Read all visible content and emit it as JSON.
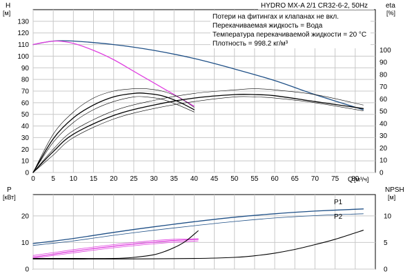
{
  "header": {
    "title": "HYDRO MX-A 2/1 CR32-6-2, 50Hz"
  },
  "notes": [
    "Потери на фитингах и клапанах не вкл.",
    "Перекачиваемая жидкость = Вода",
    "Температура перекачиваемой жидкости = 20 °C",
    "Плотность = 998.2 кг/м³"
  ],
  "colors": {
    "blue": "#1e4f86",
    "magenta": "#e040e0",
    "black": "#000000"
  },
  "chart_data": [
    {
      "type": "line",
      "name": "top",
      "ylabel_left": "H",
      "ylabel_left_unit": "[м]",
      "ylabel_right": "eta",
      "ylabel_right_unit": "[%]",
      "xlabel": "Q",
      "xlabel_unit": "[м³/ч]",
      "xlim": [
        0,
        85
      ],
      "ylim_left": [
        0,
        140
      ],
      "ylim_right": [
        0,
        100
      ],
      "x_ticks": [
        "0",
        "5",
        "10",
        "15",
        "20",
        "25",
        "30",
        "35",
        "40",
        "45",
        "50",
        "55",
        "60",
        "65",
        "70",
        "75",
        "80"
      ],
      "x_tick_values": [
        0,
        5,
        10,
        15,
        20,
        25,
        30,
        35,
        40,
        45,
        50,
        55,
        60,
        65,
        70,
        75,
        80
      ],
      "y_left_ticks": [
        0,
        10,
        20,
        30,
        40,
        50,
        60,
        70,
        80,
        90,
        100,
        110,
        120,
        130
      ],
      "y_right_ticks": [
        0,
        10,
        20,
        30,
        40,
        50,
        60,
        70,
        80,
        90,
        100
      ],
      "grid": true,
      "series": [
        {
          "axis": "left",
          "color": "#1e4f86",
          "width": 1.3,
          "x": [
            0,
            5,
            10,
            20,
            30,
            40,
            50,
            60,
            70,
            82
          ],
          "y": [
            110,
            113,
            113,
            110,
            105,
            98,
            89,
            79,
            67,
            54
          ]
        },
        {
          "axis": "left",
          "color": "#e040e0",
          "width": 1.3,
          "x": [
            0,
            3,
            6,
            10,
            15,
            20,
            25,
            30,
            35,
            40
          ],
          "y": [
            110,
            112,
            113,
            111,
            105,
            97,
            87,
            77,
            67,
            57
          ]
        },
        {
          "axis": "left",
          "color": "#000000",
          "width": 1.3,
          "x": [
            0,
            5,
            10,
            15,
            20,
            25,
            28,
            32,
            36,
            40
          ],
          "y": [
            0,
            29,
            47,
            58,
            65,
            68,
            68,
            66,
            61,
            54
          ]
        },
        {
          "axis": "left",
          "color": "#000000",
          "width": 0.6,
          "x": [
            0,
            5,
            10,
            15,
            20,
            25,
            28,
            32,
            36,
            40
          ],
          "y": [
            0,
            33,
            52,
            64,
            70,
            72,
            72,
            70,
            65,
            56
          ]
        },
        {
          "axis": "left",
          "color": "#000000",
          "width": 0.6,
          "x": [
            0,
            5,
            10,
            15,
            20,
            25,
            28,
            32,
            36,
            40
          ],
          "y": [
            0,
            26,
            43,
            54,
            61,
            65,
            65,
            63,
            58,
            52
          ]
        },
        {
          "axis": "left",
          "color": "#000000",
          "width": 1.3,
          "x": [
            0,
            5,
            10,
            20,
            30,
            40,
            50,
            55,
            60,
            70,
            82
          ],
          "y": [
            0,
            18,
            33,
            49,
            58,
            64,
            67,
            67,
            66,
            61,
            55
          ]
        },
        {
          "axis": "left",
          "color": "#000000",
          "width": 0.6,
          "x": [
            0,
            5,
            10,
            20,
            30,
            40,
            50,
            55,
            60,
            70,
            82
          ],
          "y": [
            0,
            20,
            36,
            53,
            62,
            68,
            71,
            72,
            71,
            67,
            58
          ]
        },
        {
          "axis": "left",
          "color": "#000000",
          "width": 0.6,
          "x": [
            0,
            5,
            10,
            20,
            30,
            40,
            50,
            55,
            60,
            70,
            82
          ],
          "y": [
            0,
            15,
            30,
            46,
            55,
            61,
            65,
            65,
            64,
            60,
            53
          ]
        }
      ]
    },
    {
      "type": "line",
      "name": "bottom",
      "ylabel_left": "P",
      "ylabel_left_unit": "[кВт]",
      "ylabel_right": "NPSH",
      "ylabel_right_unit": "[м]",
      "xlim": [
        0,
        85
      ],
      "ylim_left": [
        0,
        28
      ],
      "ylim_right": [
        0,
        14
      ],
      "y_left_ticks": [
        0,
        10,
        20
      ],
      "y_right_ticks": [
        0,
        5,
        10
      ],
      "grid": true,
      "labels": [
        "P1",
        "P2"
      ],
      "series": [
        {
          "axis": "left",
          "color": "#1e4f86",
          "width": 1.3,
          "label": "P1",
          "x": [
            0,
            10,
            20,
            30,
            40,
            50,
            60,
            70,
            82
          ],
          "y": [
            9.6,
            11.5,
            13.8,
            15.9,
            17.8,
            19.5,
            20.8,
            21.8,
            22.6
          ]
        },
        {
          "axis": "left",
          "color": "#1e4f86",
          "width": 0.8,
          "label": "P2",
          "x": [
            0,
            10,
            20,
            30,
            40,
            50,
            60,
            70,
            82
          ],
          "y": [
            8.9,
            10.6,
            12.7,
            14.6,
            16.3,
            17.9,
            19.2,
            20.1,
            20.8
          ]
        },
        {
          "axis": "left",
          "color": "#e040e0",
          "width": 1.3,
          "x": [
            0,
            5,
            10,
            15,
            20,
            25,
            30,
            35,
            41
          ],
          "y": [
            4.5,
            5.6,
            6.7,
            7.7,
            8.6,
            9.4,
            10.1,
            10.7,
            11.2
          ]
        },
        {
          "axis": "left",
          "color": "#e040e0",
          "width": 0.8,
          "x": [
            0,
            5,
            10,
            15,
            20,
            25,
            30,
            35,
            41
          ],
          "y": [
            5.1,
            6.2,
            7.3,
            8.3,
            9.2,
            10.0,
            10.7,
            11.2,
            11.4
          ]
        },
        {
          "axis": "left",
          "color": "#e040e0",
          "width": 0.8,
          "x": [
            0,
            5,
            10,
            15,
            20,
            25,
            30,
            35,
            41
          ],
          "y": [
            4.1,
            5.1,
            6.1,
            7.1,
            8.0,
            8.8,
            9.5,
            10.1,
            10.6
          ]
        },
        {
          "axis": "right",
          "color": "#000000",
          "width": 1.1,
          "x": [
            0,
            10,
            20,
            25,
            30,
            33,
            36,
            38,
            41
          ],
          "y": [
            2,
            2,
            2,
            2.2,
            2.7,
            3.4,
            4.4,
            5.3,
            7.2
          ]
        },
        {
          "axis": "right",
          "color": "#000000",
          "width": 1.1,
          "x": [
            0,
            20,
            40,
            50,
            55,
            60,
            65,
            70,
            75,
            82
          ],
          "y": [
            1.9,
            1.9,
            2.0,
            2.2,
            2.5,
            3.0,
            3.7,
            4.6,
            5.6,
            7.3
          ]
        }
      ]
    }
  ]
}
